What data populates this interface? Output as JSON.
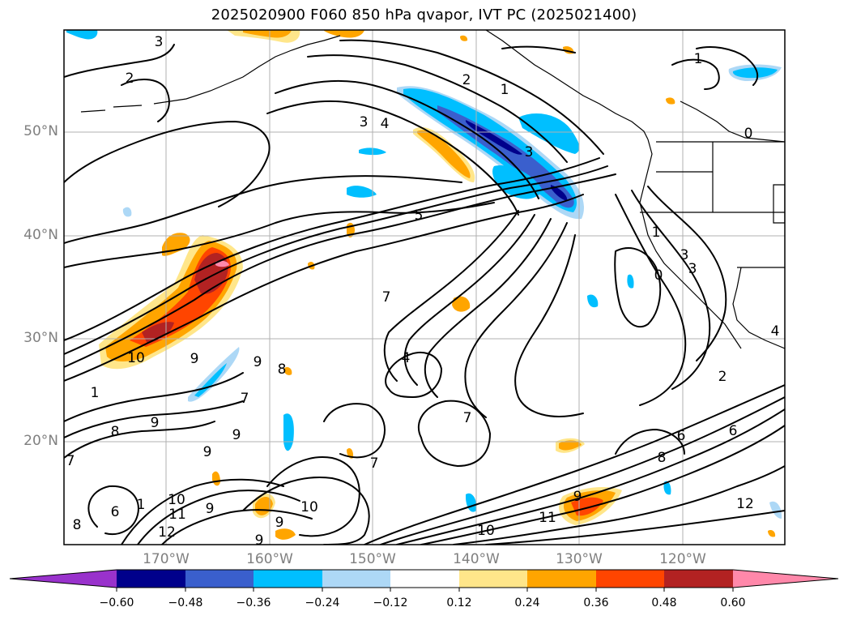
{
  "title": "2025020900 F060 850 hPa qvapor, IVT PC (2025021400)",
  "lat_labels": [
    "50°N",
    "40°N",
    "30°N",
    "20°N"
  ],
  "lon_labels": [
    "170°W",
    "160°W",
    "150°W",
    "140°W",
    "130°W",
    "120°W"
  ],
  "colorbar": {
    "ticks": [
      "−0.60",
      "−0.48",
      "−0.36",
      "−0.24",
      "−0.12",
      "0.12",
      "0.24",
      "0.36",
      "0.48",
      "0.60"
    ],
    "colors": [
      "#9932cc",
      "#00008b",
      "#3a5fcd",
      "#00bfff",
      "#add8f6",
      "#ffffff",
      "#ffe68a",
      "#ffa500",
      "#ff4500",
      "#b22222",
      "#ff88aa"
    ]
  },
  "contour_labels": [
    {
      "text": "3"
    },
    {
      "text": "2"
    },
    {
      "text": "3"
    },
    {
      "text": "4"
    },
    {
      "text": "2"
    },
    {
      "text": "1"
    },
    {
      "text": "1"
    },
    {
      "text": "0"
    },
    {
      "text": "3"
    },
    {
      "text": "5"
    },
    {
      "text": "7"
    },
    {
      "text": "4"
    },
    {
      "text": "3"
    },
    {
      "text": "3"
    },
    {
      "text": "0"
    },
    {
      "text": "1"
    },
    {
      "text": "10"
    },
    {
      "text": "9"
    },
    {
      "text": "9"
    },
    {
      "text": "8"
    },
    {
      "text": "7"
    },
    {
      "text": "1"
    },
    {
      "text": "8"
    },
    {
      "text": "9"
    },
    {
      "text": "9"
    },
    {
      "text": "9"
    },
    {
      "text": "7"
    },
    {
      "text": "7"
    },
    {
      "text": "7"
    },
    {
      "text": "2"
    },
    {
      "text": "6"
    },
    {
      "text": "6"
    },
    {
      "text": "8"
    },
    {
      "text": "6"
    },
    {
      "text": "1"
    },
    {
      "text": "10"
    },
    {
      "text": "11"
    },
    {
      "text": "12"
    },
    {
      "text": "9"
    },
    {
      "text": "9"
    },
    {
      "text": "10"
    },
    {
      "text": "9"
    },
    {
      "text": "10"
    },
    {
      "text": "11"
    },
    {
      "text": "9"
    },
    {
      "text": "12"
    },
    {
      "text": "4"
    },
    {
      "text": "8"
    }
  ]
}
